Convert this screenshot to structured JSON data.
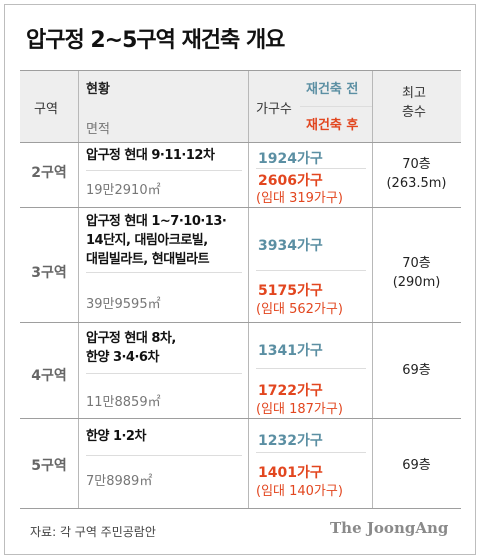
{
  "title": "압구정 2~5구역 재건축 개요",
  "header": {
    "zone": "구역",
    "status": "현황",
    "area": "면적",
    "households": "가구수",
    "before": "재건축 전",
    "after": "재건축 후",
    "max_floors_line1": "최고",
    "max_floors_line2": "층수"
  },
  "rows": [
    {
      "zone": "2구역",
      "name_lines": [
        "압구정 현대 9·11·12차"
      ],
      "area": "19만2910㎡",
      "before": "1924가구",
      "after": "2606가구",
      "rental": "(임대 319가구)",
      "floors_line1": "70층",
      "floors_line2": "(263.5m)"
    },
    {
      "zone": "3구역",
      "name_lines": [
        "압구정 현대 1~7·10·13·",
        "14단지, 대림아크로빌,",
        "대림빌라트, 현대빌라트"
      ],
      "area": "39만9595㎡",
      "before": "3934가구",
      "after": "5175가구",
      "rental": "(임대 562가구)",
      "floors_line1": "70층",
      "floors_line2": "(290m)"
    },
    {
      "zone": "4구역",
      "name_lines": [
        "압구정 현대 8차,",
        "한양 3·4·6차"
      ],
      "area": "11만8859㎡",
      "before": "1341가구",
      "after": "1722가구",
      "rental": "(임대 187가구)",
      "floors_line1": "69층",
      "floors_line2": ""
    },
    {
      "zone": "5구역",
      "name_lines": [
        "한양 1·2차"
      ],
      "area": "7만8989㎡",
      "before": "1232가구",
      "after": "1401가구",
      "rental": "(임대 140가구)",
      "floors_line1": "69층",
      "floors_line2": ""
    }
  ],
  "source": "자료: 각 구역 주민공람안",
  "brand": "The JoongAng",
  "colors": {
    "before": "#5b8fa3",
    "after": "#e2461f",
    "header_bg": "#eeeeee"
  }
}
